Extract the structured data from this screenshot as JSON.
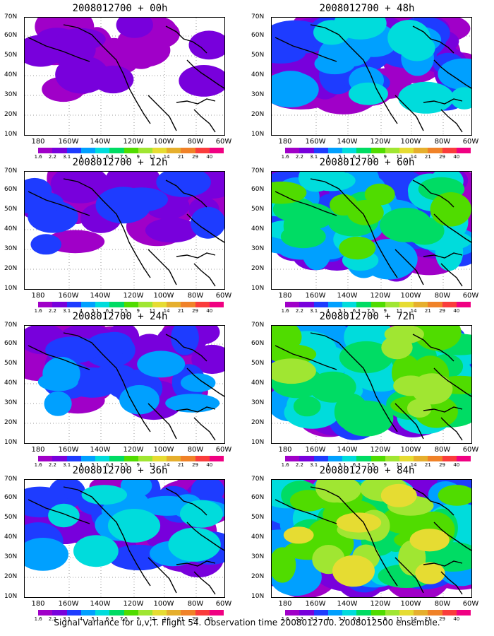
{
  "panels": [
    {
      "title": "2008012700 + 00h",
      "intensity": 0.18
    },
    {
      "title": "2008012700 + 48h",
      "intensity": 0.45
    },
    {
      "title": "2008012700 + 12h",
      "intensity": 0.22
    },
    {
      "title": "2008012700 + 60h",
      "intensity": 0.55
    },
    {
      "title": "2008012700 + 24h",
      "intensity": 0.3
    },
    {
      "title": "2008012700 + 72h",
      "intensity": 0.65
    },
    {
      "title": "2008012700 + 36h",
      "intensity": 0.38
    },
    {
      "title": "2008012700 + 84h",
      "intensity": 0.72
    }
  ],
  "lat_labels": [
    "70N",
    "60N",
    "50N",
    "40N",
    "30N",
    "20N",
    "10N"
  ],
  "lon_labels": [
    "180",
    "160W",
    "140W",
    "120W",
    "100W",
    "80W",
    "60W"
  ],
  "colorbar": {
    "labels": [
      "1.6",
      "2.2",
      "3.1",
      "4",
      "5.1",
      "6.3",
      "7.5",
      "9",
      "11",
      "14",
      "21",
      "29",
      "40"
    ],
    "colors": [
      "#ffffff",
      "#a000c8",
      "#7800dc",
      "#1e3cff",
      "#00a0ff",
      "#00dcdc",
      "#00dc64",
      "#50dc00",
      "#a0e632",
      "#e6dc32",
      "#e6af2d",
      "#f08228",
      "#fa3c3c",
      "#f00082"
    ]
  },
  "caption": "Signal Variance for u,v,T. Flight 54. Observation time 2008012700. 2008012500 ensemble."
}
